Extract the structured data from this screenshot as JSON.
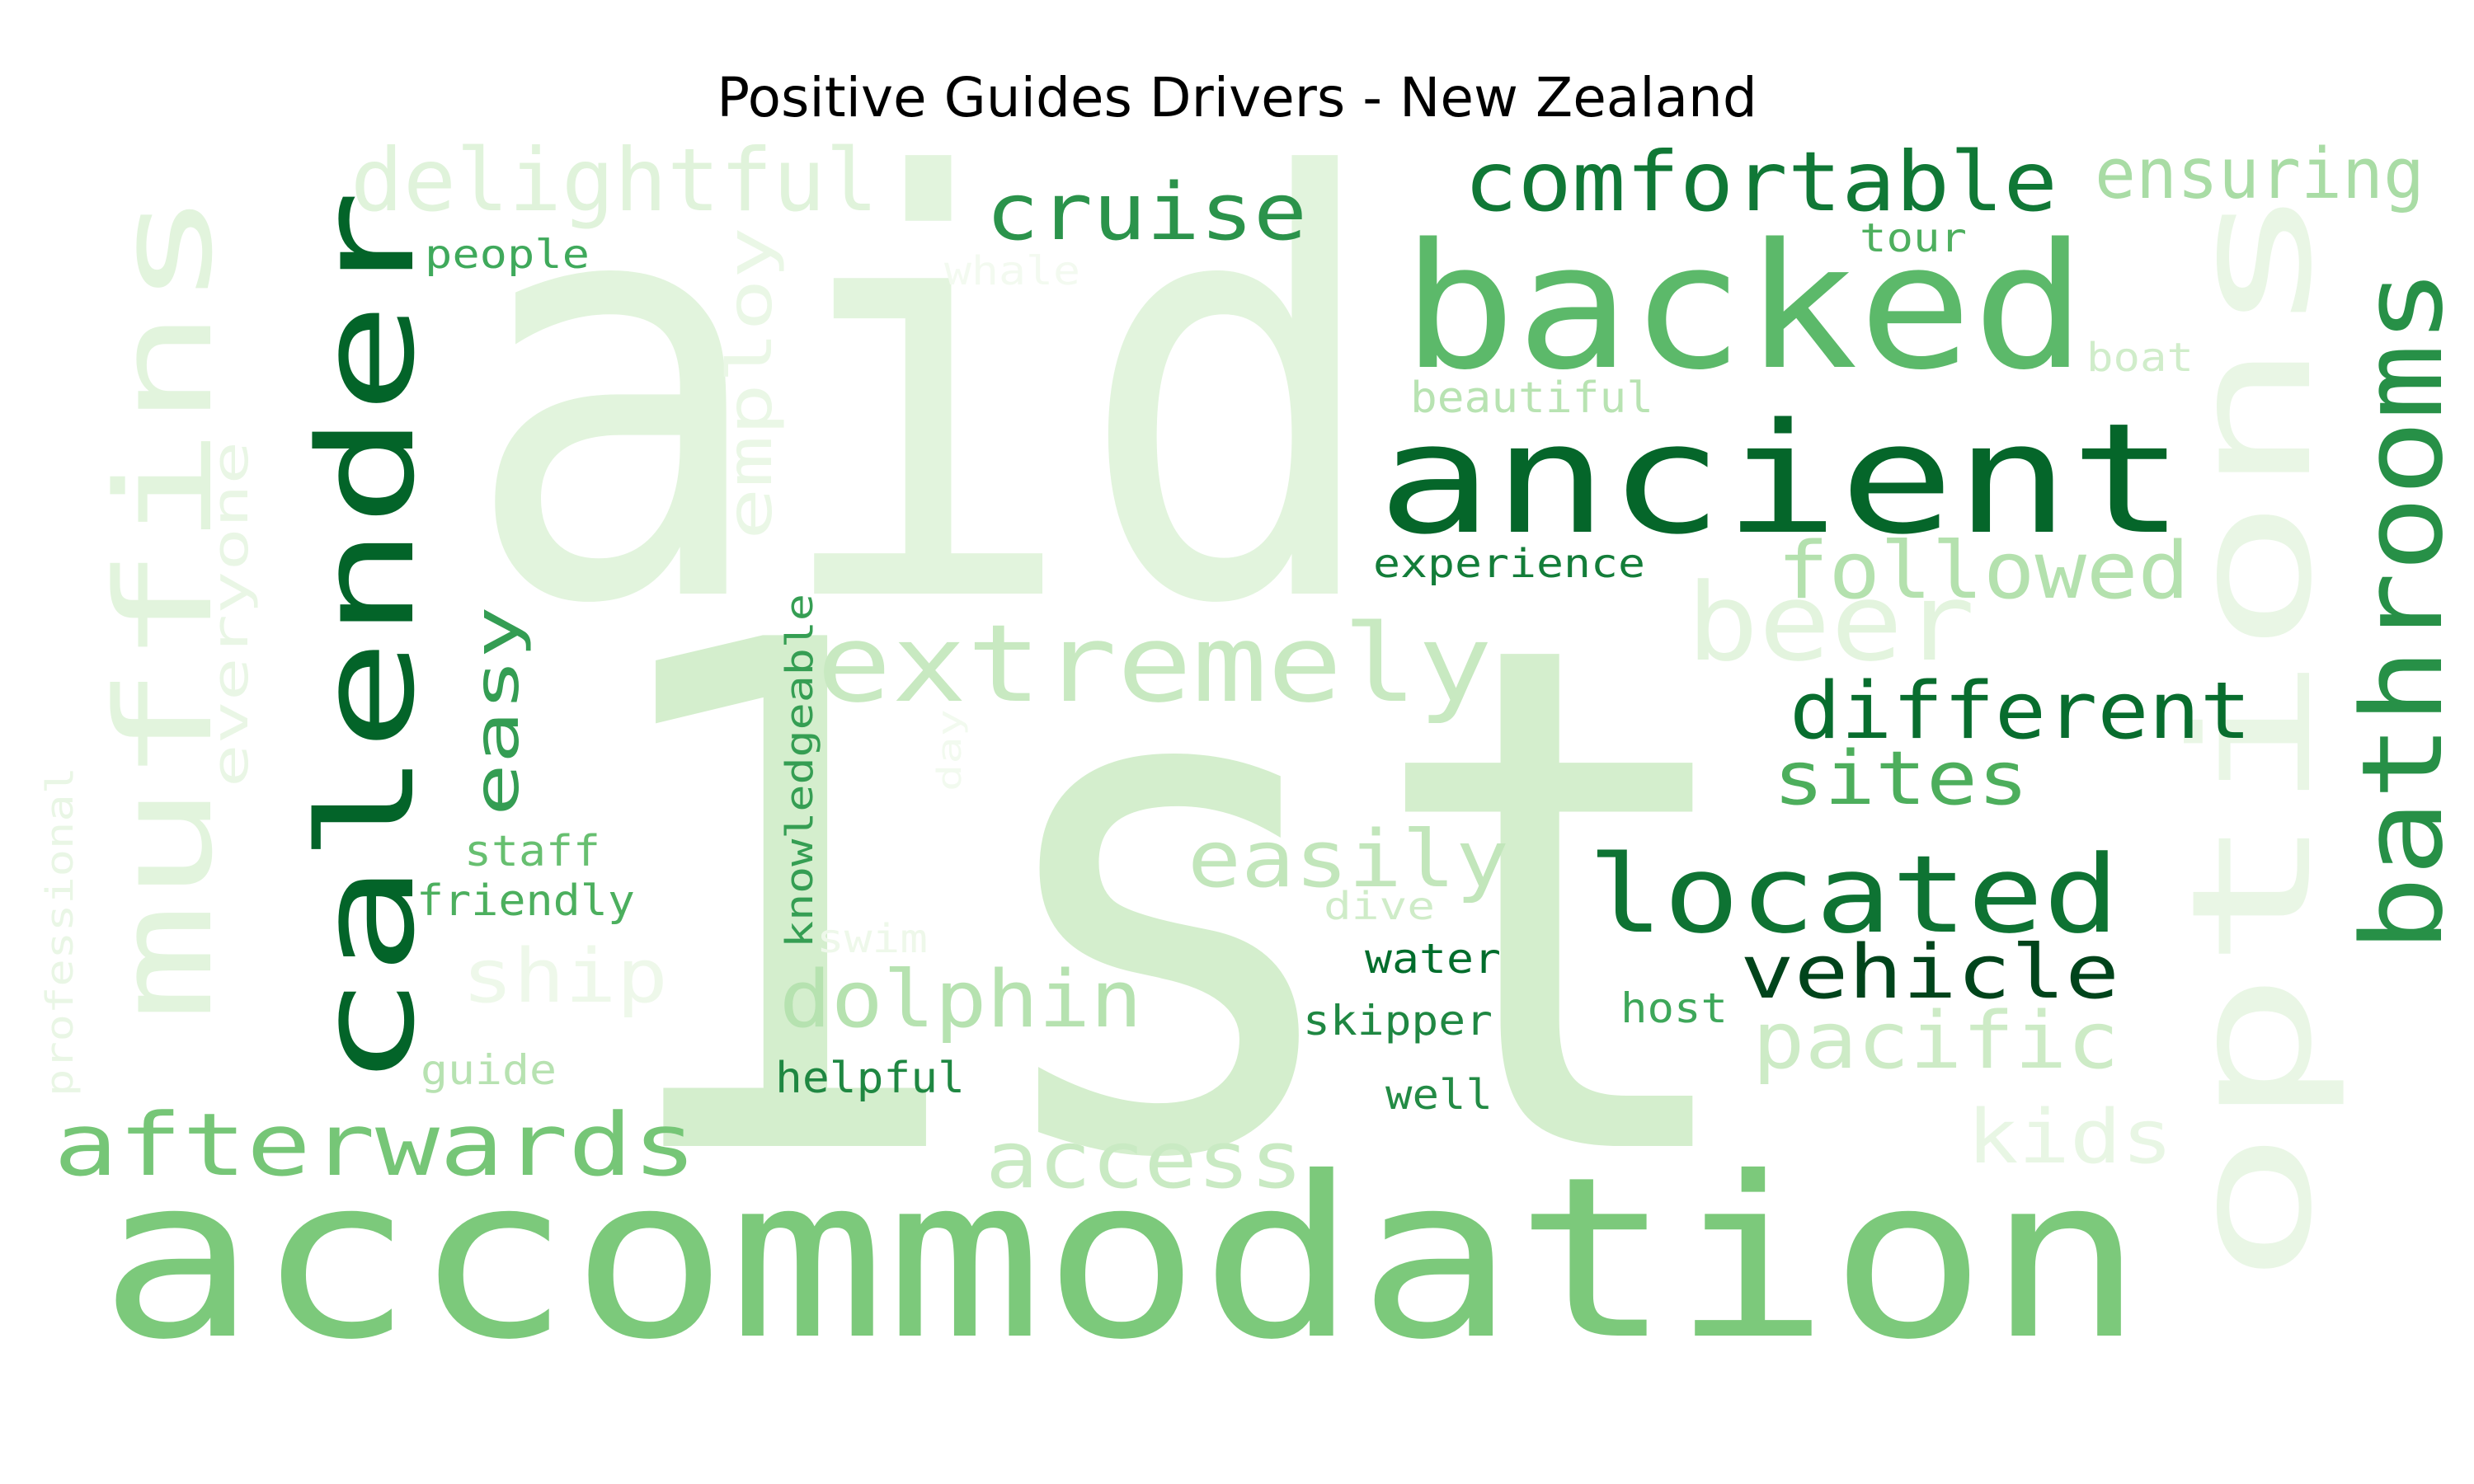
{
  "title": "Positive Guides Drivers - New Zealand",
  "palette": [
    "#00441b",
    "#006d2c",
    "#238b45",
    "#41ab5d",
    "#74c476",
    "#a1d99b",
    "#c7e9c0",
    "#e5f5e0"
  ],
  "words": [
    {
      "text": "aid",
      "color": "#e2f4dd"
    },
    {
      "text": "1st",
      "color": "#d4eecd"
    },
    {
      "text": "accommodation",
      "color": "#7cc97b"
    },
    {
      "text": "options",
      "color": "#e9f6e5"
    },
    {
      "text": "ancient",
      "color": "#05662a"
    },
    {
      "text": "backed",
      "color": "#5cb96a"
    },
    {
      "text": "calender",
      "color": "#036429"
    },
    {
      "text": "muffins",
      "color": "#e2f4dd"
    },
    {
      "text": "bathrooms",
      "color": "#279047"
    },
    {
      "text": "extremely",
      "color": "#c8e9c1"
    },
    {
      "text": "located",
      "color": "#0e7333"
    },
    {
      "text": "afterwards",
      "color": "#76c677"
    },
    {
      "text": "delightful",
      "color": "#e0f3db"
    },
    {
      "text": "comfortable",
      "color": "#107836"
    },
    {
      "text": "cruise",
      "color": "#2b934b"
    },
    {
      "text": "ensuring",
      "color": "#a9dca5"
    },
    {
      "text": "followed",
      "color": "#b4e1ae"
    },
    {
      "text": "beer",
      "color": "#e3f4de"
    },
    {
      "text": "different",
      "color": "#086d2e"
    },
    {
      "text": "sites",
      "color": "#4dae5c"
    },
    {
      "text": "easily",
      "color": "#c2e6bb"
    },
    {
      "text": "vehicle",
      "color": "#00441b"
    },
    {
      "text": "dolphin",
      "color": "#b6e2b0"
    },
    {
      "text": "pacific",
      "color": "#cdebc6"
    },
    {
      "text": "access",
      "color": "#c9eac3"
    },
    {
      "text": "kids",
      "color": "#e8f6e4"
    },
    {
      "text": "easy",
      "color": "#349d53"
    },
    {
      "text": "employ",
      "color": "#eaf7e6"
    },
    {
      "text": "everyone",
      "color": "#e9f6e5"
    },
    {
      "text": "ship",
      "color": "#eef8ea"
    },
    {
      "text": "knowledgeable",
      "color": "#359e53"
    },
    {
      "text": "professional",
      "color": "#e9f6e5"
    },
    {
      "text": "people",
      "color": "#3fa95b"
    },
    {
      "text": "whale",
      "color": "#f3faf0"
    },
    {
      "text": "tour",
      "color": "#4eaf5e"
    },
    {
      "text": "boat",
      "color": "#d0edca"
    },
    {
      "text": "beautiful",
      "color": "#b8e3b2"
    },
    {
      "text": "experience",
      "color": "#137d39"
    },
    {
      "text": "staff",
      "color": "#67bf70"
    },
    {
      "text": "friendly",
      "color": "#4caf5e"
    },
    {
      "text": "day",
      "color": "#f2faef"
    },
    {
      "text": "swim",
      "color": "#eef8ea"
    },
    {
      "text": "dive",
      "color": "#cfecc8"
    },
    {
      "text": "water",
      "color": "#006d2c"
    },
    {
      "text": "host",
      "color": "#3ea75a"
    },
    {
      "text": "skipper",
      "color": "#1f8742"
    },
    {
      "text": "guide",
      "color": "#b7e2b1"
    },
    {
      "text": "helpful",
      "color": "#1f8742"
    },
    {
      "text": "well",
      "color": "#238b45"
    }
  ]
}
